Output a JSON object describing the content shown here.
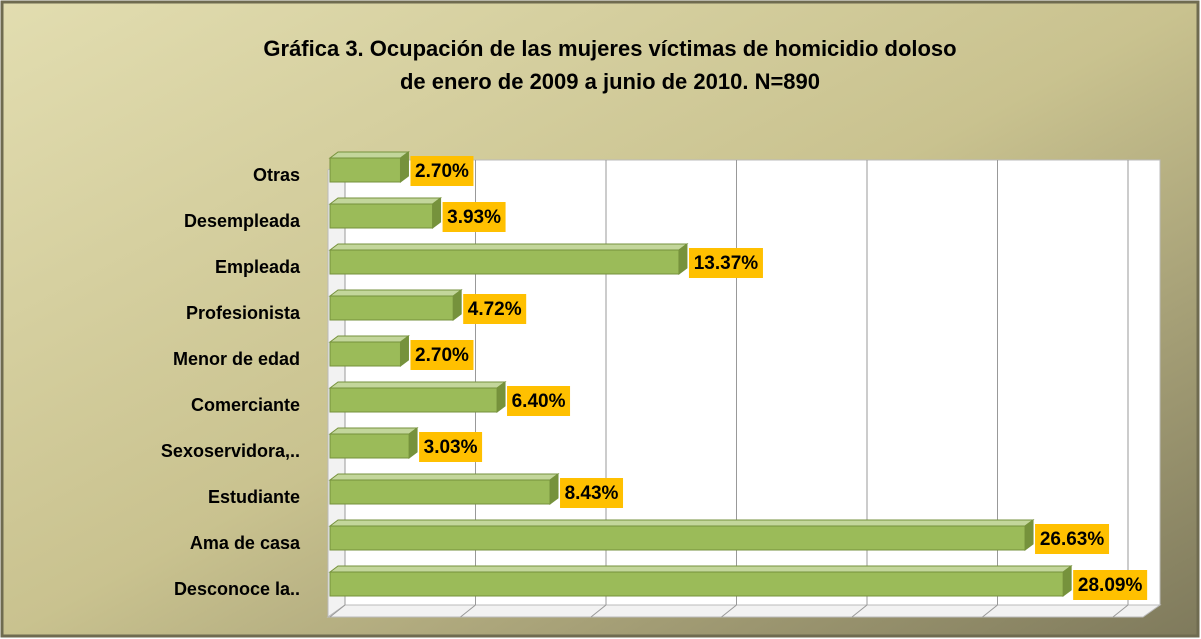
{
  "chart_data": {
    "type": "bar",
    "title": "Gráfica 3. Ocupación de las mujeres víctimas de homicidio doloso\nde enero de 2009 a junio de 2010. N=890",
    "categories": [
      "Otras",
      "Desempleada",
      "Empleada",
      "Profesionista",
      "Menor de edad",
      "Comerciante",
      "Sexoservidora,..",
      "Estudiante",
      "Ama de casa",
      "Desconoce la.."
    ],
    "values": [
      2.7,
      3.93,
      13.37,
      4.72,
      2.7,
      6.4,
      3.03,
      8.43,
      26.63,
      28.09
    ],
    "value_labels": [
      "2.70%",
      "3.93%",
      "13.37%",
      "4.72%",
      "2.70%",
      "6.40%",
      "3.03%",
      "8.43%",
      "26.63%",
      "28.09%"
    ],
    "color": "#9bbb59",
    "label_color": "#ffc000",
    "xlim": [
      0,
      30
    ],
    "xticks": [
      0,
      5,
      10,
      15,
      20,
      25,
      30
    ],
    "grid": true
  }
}
